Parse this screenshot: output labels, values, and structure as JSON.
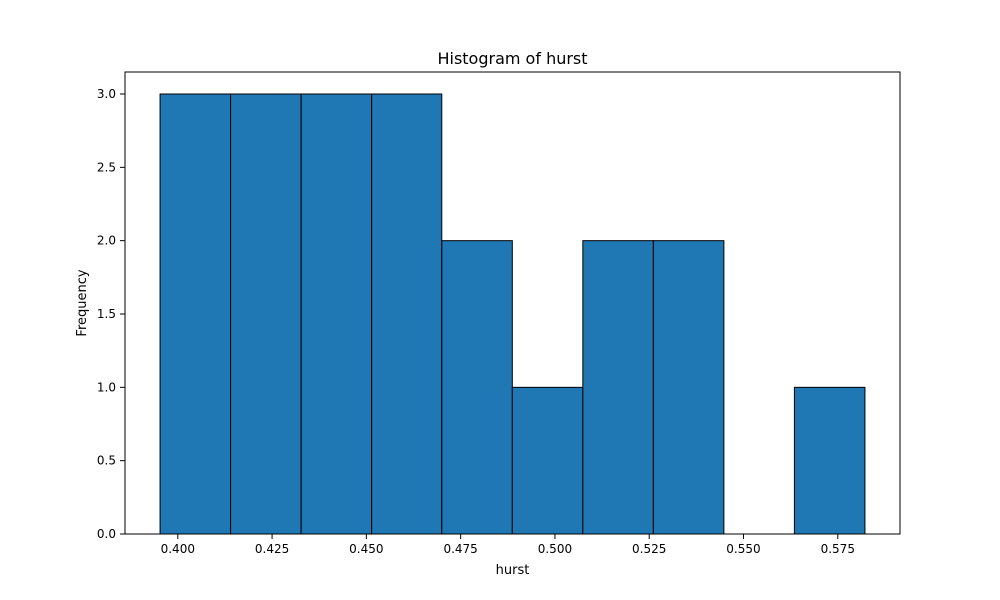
{
  "chart_data": {
    "type": "bar",
    "title": "Histogram of hurst",
    "xlabel": "hurst",
    "ylabel": "Frequency",
    "bin_edges": [
      0.3953,
      0.414,
      0.4327,
      0.4514,
      0.47,
      0.4887,
      0.5074,
      0.5261,
      0.5448,
      0.5635,
      0.5822
    ],
    "values": [
      3,
      3,
      3,
      3,
      2,
      1,
      2,
      2,
      0,
      1
    ],
    "xlim": [
      0.386,
      0.5915
    ],
    "ylim": [
      0,
      3.15
    ],
    "xticks": [
      0.4,
      0.425,
      0.45,
      0.475,
      0.5,
      0.525,
      0.55,
      0.575
    ],
    "xtick_labels": [
      "0.400",
      "0.425",
      "0.450",
      "0.475",
      "0.500",
      "0.525",
      "0.550",
      "0.575"
    ],
    "yticks": [
      0,
      0.5,
      1,
      1.5,
      2,
      2.5,
      3
    ],
    "ytick_labels": [
      "0.0",
      "0.5",
      "1.0",
      "1.5",
      "2.0",
      "2.5",
      "3.0"
    ],
    "grid": false,
    "bar_color": "#1f77b4",
    "edge_color": "#000000"
  }
}
